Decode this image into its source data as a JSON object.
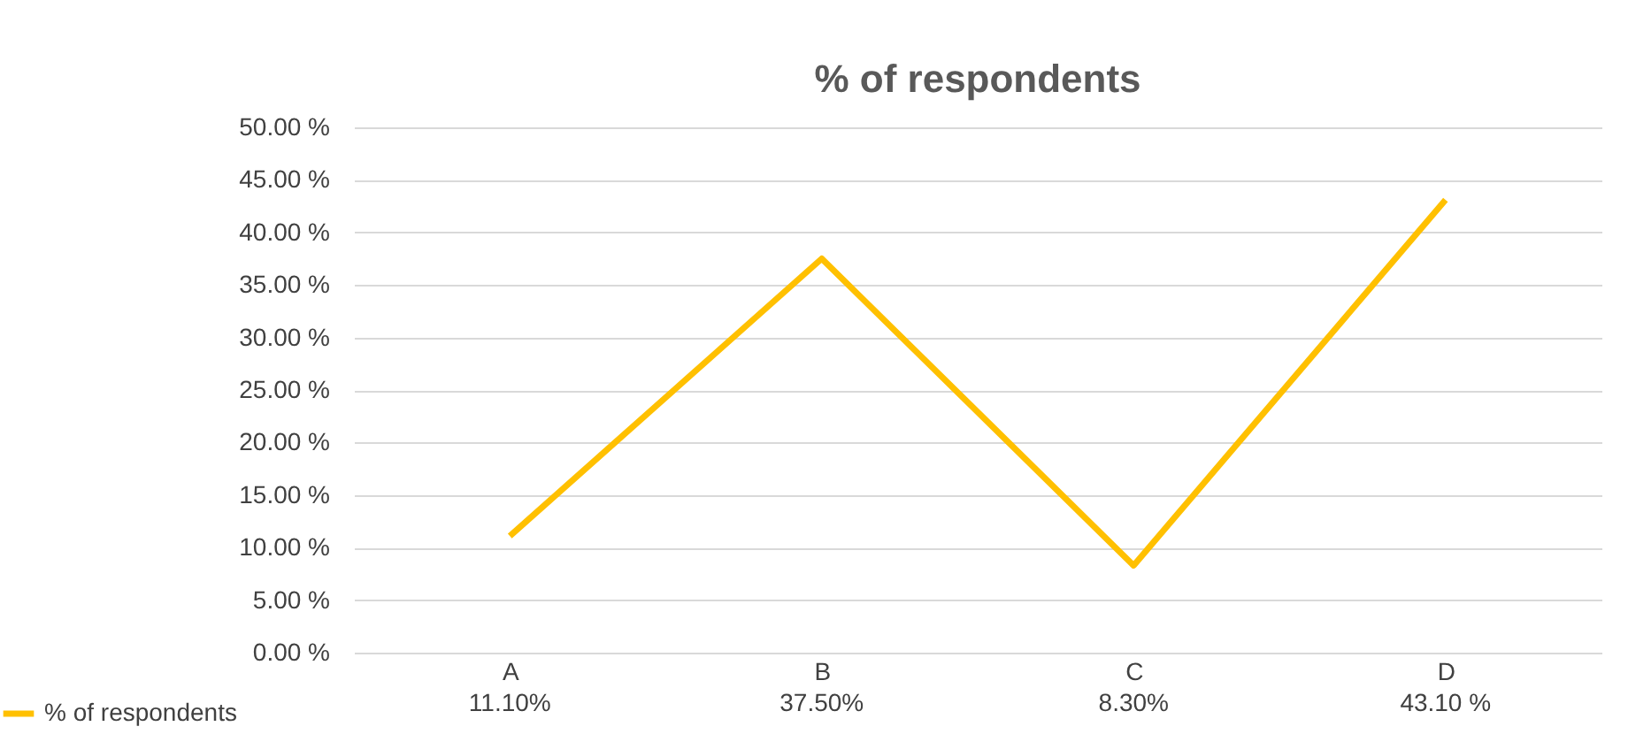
{
  "chart_data": {
    "type": "line",
    "title": "% of respondents",
    "categories": [
      "A",
      "B",
      "C",
      "D"
    ],
    "series": [
      {
        "name": "% of respondents",
        "color": "#ffc000",
        "values": [
          11.1,
          37.5,
          8.3,
          43.1
        ],
        "value_labels": [
          "11.10%",
          "37.50%",
          "8.30%",
          "43.10 %"
        ]
      }
    ],
    "ylim": [
      0,
      50
    ],
    "yticks": [
      {
        "value": 0,
        "label": "0.00 %"
      },
      {
        "value": 5,
        "label": "5.00 %"
      },
      {
        "value": 10,
        "label": "10.00 %"
      },
      {
        "value": 15,
        "label": "15.00 %"
      },
      {
        "value": 20,
        "label": "20.00 %"
      },
      {
        "value": 25,
        "label": "25.00 %"
      },
      {
        "value": 30,
        "label": "30.00 %"
      },
      {
        "value": 35,
        "label": "35.00 %"
      },
      {
        "value": 40,
        "label": "40.00 %"
      },
      {
        "value": 45,
        "label": "45.00 %"
      },
      {
        "value": 50,
        "label": "50.00 %"
      }
    ],
    "grid": "y",
    "legend": "bottom left",
    "marker": "none",
    "line_style": "solid"
  }
}
